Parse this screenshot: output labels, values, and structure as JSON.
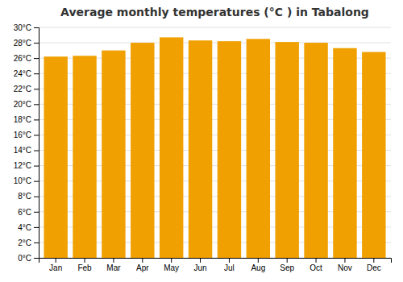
{
  "chart_data": {
    "type": "bar",
    "title": "Average monthly temperatures (°C ) in Tabalong",
    "categories": [
      "Jan",
      "Feb",
      "Mar",
      "Apr",
      "May",
      "Jun",
      "Jul",
      "Aug",
      "Sep",
      "Oct",
      "Nov",
      "Dec"
    ],
    "values": [
      26.2,
      26.3,
      27.0,
      28.0,
      28.7,
      28.3,
      28.2,
      28.5,
      28.1,
      28.0,
      27.3,
      26.8
    ],
    "color": "#F0A000",
    "ylim": [
      0,
      30
    ],
    "yticks": [
      {
        "value": 0,
        "label": "0°C"
      },
      {
        "value": 2,
        "label": "2°C"
      },
      {
        "value": 4,
        "label": "4°C"
      },
      {
        "value": 6,
        "label": "6°C"
      },
      {
        "value": 8,
        "label": "8°C"
      },
      {
        "value": 10,
        "label": "10°C"
      },
      {
        "value": 12,
        "label": "12°C"
      },
      {
        "value": 14,
        "label": "14°C"
      },
      {
        "value": 16,
        "label": "16°C"
      },
      {
        "value": 18,
        "label": "18°C"
      },
      {
        "value": 20,
        "label": "20°C"
      },
      {
        "value": 22,
        "label": "22°C"
      },
      {
        "value": 24,
        "label": "24°C"
      },
      {
        "value": 26,
        "label": "26°C"
      },
      {
        "value": 28,
        "label": "28°C"
      },
      {
        "value": 30,
        "label": "30°C"
      }
    ],
    "grid": true
  }
}
